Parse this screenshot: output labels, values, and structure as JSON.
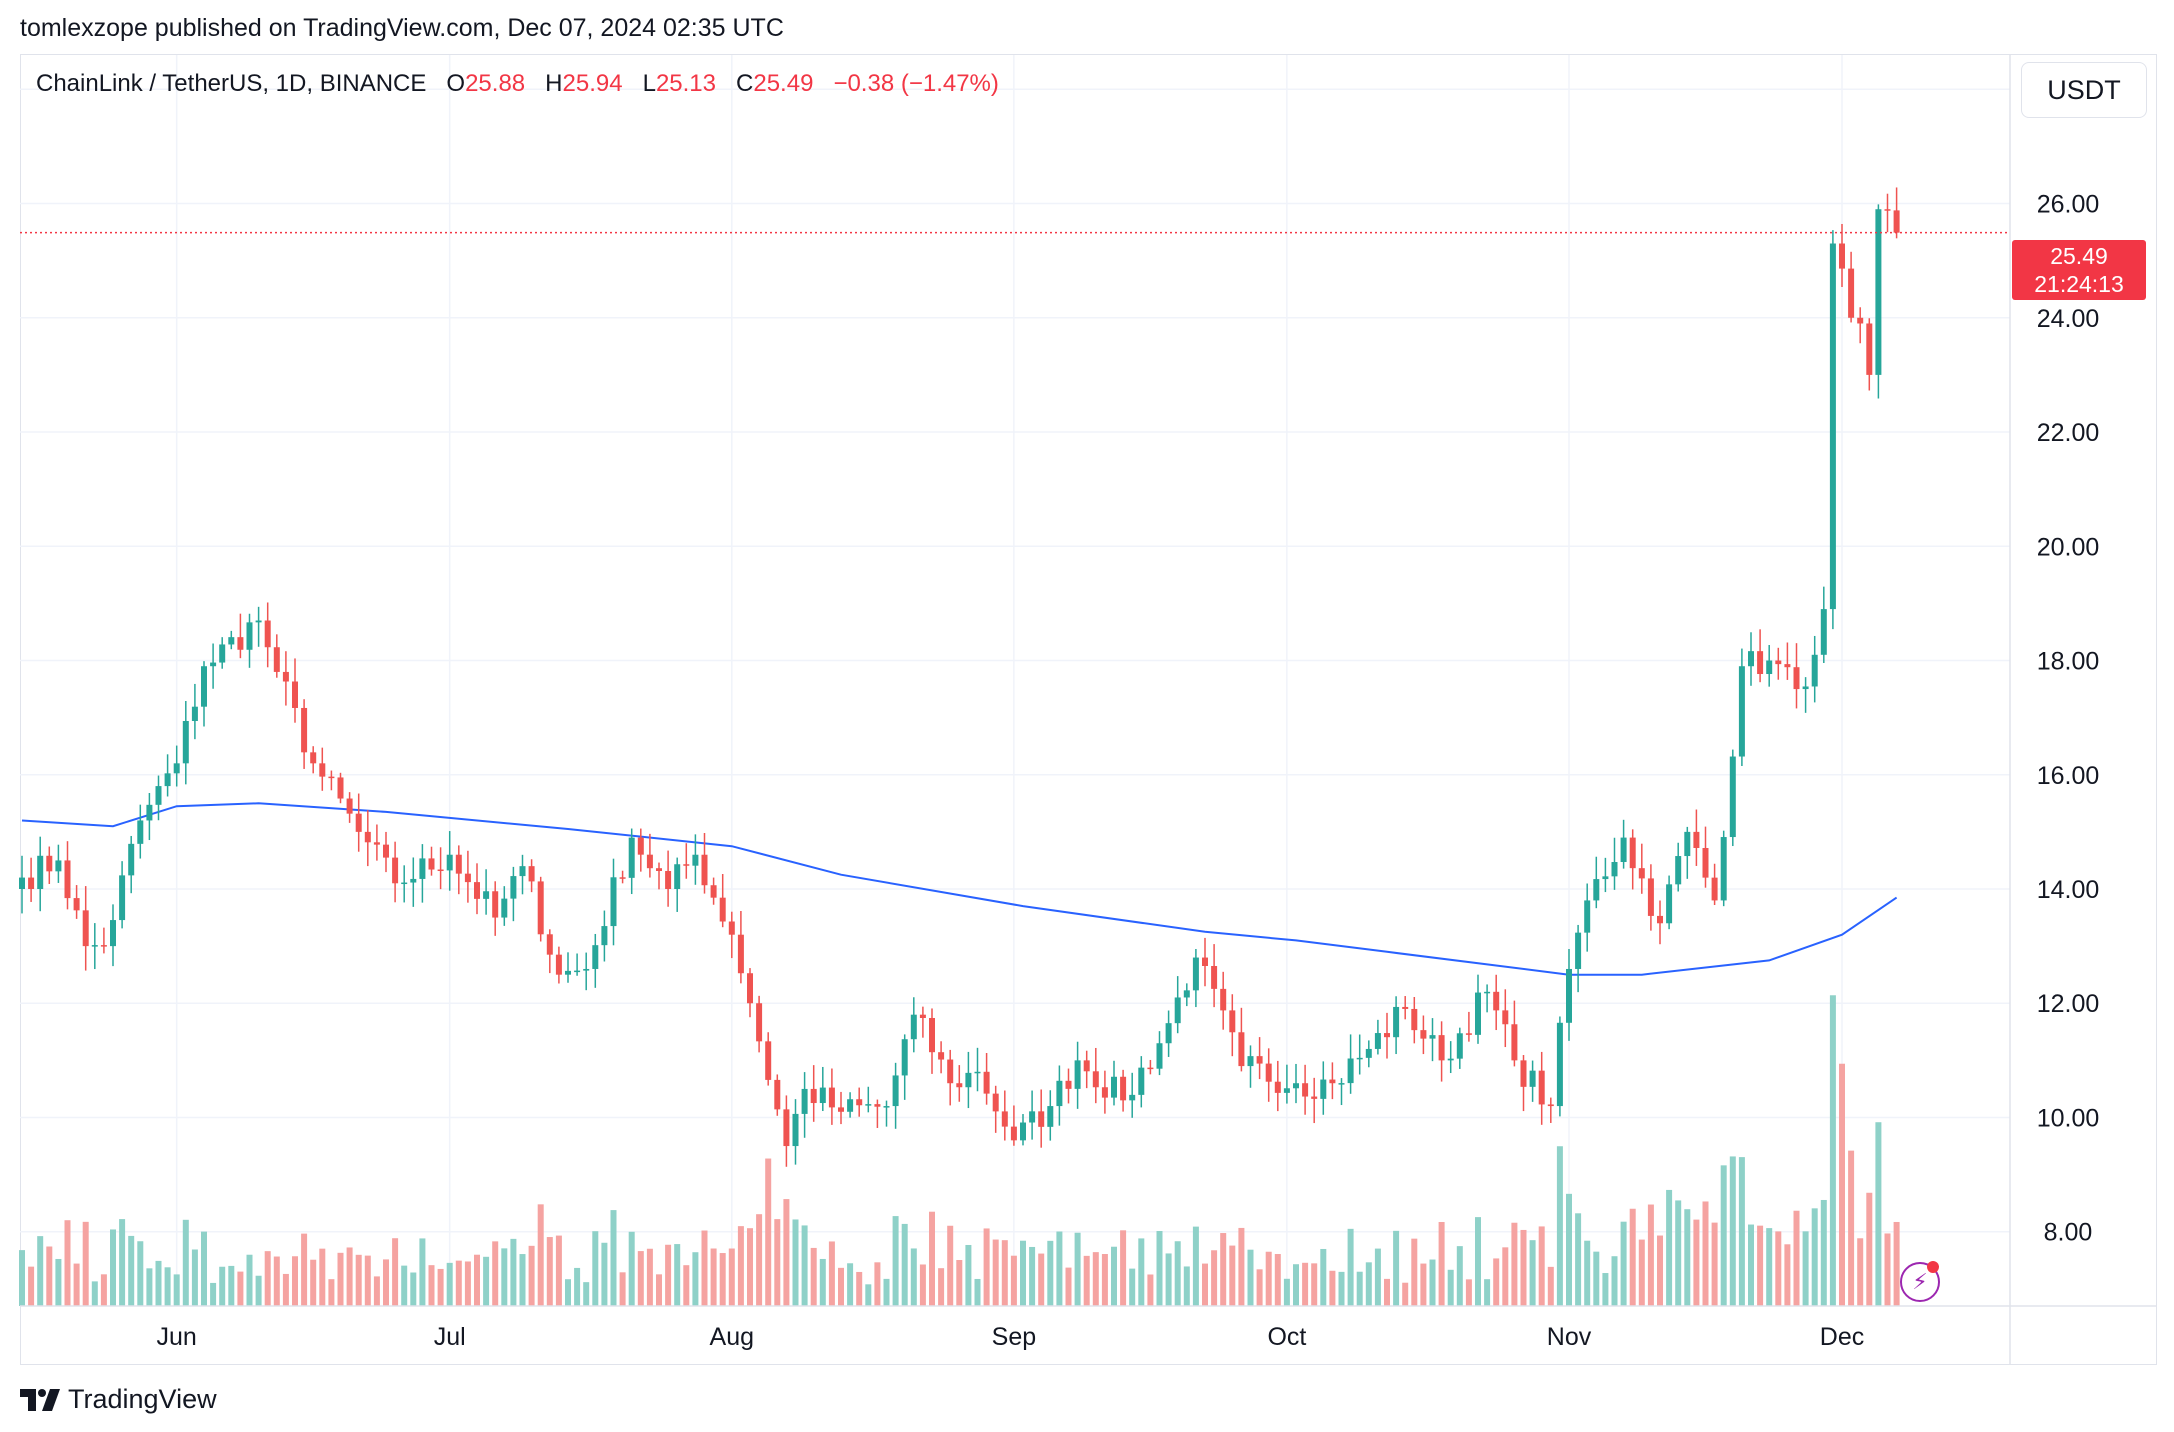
{
  "header": {
    "published_line": "tomlexzope published on TradingView.com, Dec 07, 2024 02:35 UTC"
  },
  "legend": {
    "symbol": "ChainLink / TetherUS, 1D, BINANCE",
    "open_label": "O",
    "open": "25.88",
    "high_label": "H",
    "high": "25.94",
    "low_label": "L",
    "low": "25.13",
    "close_label": "C",
    "close": "25.49",
    "change": "−0.38 (−1.47%)"
  },
  "currency_button": "USDT",
  "last_price": {
    "value": "25.49",
    "countdown": "21:24:13"
  },
  "footer": {
    "brand": "TradingView",
    "logo_icon": "tradingview-logo-icon"
  },
  "chart_data": {
    "type": "candlestick",
    "ylim": [
      6.7,
      28.6
    ],
    "y_ticks": [
      "8.00",
      "10.00",
      "12.00",
      "14.00",
      "16.00",
      "18.00",
      "20.00",
      "22.00",
      "24.00",
      "26.00",
      "28.00"
    ],
    "x_ticks": [
      {
        "label": "Jun",
        "day": 17
      },
      {
        "label": "Jul",
        "day": 47
      },
      {
        "label": "Aug",
        "day": 78
      },
      {
        "label": "Sep",
        "day": 109
      },
      {
        "label": "Oct",
        "day": 139
      },
      {
        "label": "Nov",
        "day": 170
      },
      {
        "label": "Dec",
        "day": 200
      }
    ],
    "grid": true,
    "colors": {
      "up": "#26a69a",
      "down": "#ef5350",
      "up_volume": "#8ed1c8",
      "down_volume": "#f5a3a1",
      "ma": "#2962ff",
      "last_price_line": "#f23645"
    },
    "first_date": "2024-05-15",
    "moving_average": {
      "days": [
        0,
        10,
        17,
        26,
        40,
        60,
        78,
        90,
        110,
        130,
        140,
        150,
        170,
        178,
        192,
        200,
        206
      ],
      "values": [
        15.2,
        15.1,
        15.45,
        15.5,
        15.35,
        15.05,
        14.75,
        14.25,
        13.7,
        13.25,
        13.1,
        12.9,
        12.5,
        12.5,
        12.75,
        13.2,
        13.85
      ]
    },
    "anchors": {
      "days": [
        0,
        4,
        7,
        9,
        13,
        17,
        20,
        26,
        28,
        32,
        37,
        41,
        47,
        52,
        55,
        59,
        62,
        67,
        71,
        74,
        78,
        80,
        84,
        86,
        90,
        95,
        98,
        102,
        105,
        109,
        113,
        116,
        121,
        125,
        129,
        134,
        140,
        144,
        148,
        152,
        156,
        161,
        164,
        168,
        170,
        172,
        176,
        180,
        183,
        186,
        189,
        192,
        195,
        197,
        198,
        199,
        201,
        202,
        203,
        204,
        205,
        206
      ],
      "closes": [
        14.2,
        14.5,
        13.0,
        13.0,
        15.2,
        16.2,
        17.9,
        18.7,
        17.8,
        16.2,
        15.0,
        14.1,
        14.6,
        13.5,
        14.4,
        12.5,
        12.6,
        14.9,
        14.0,
        14.6,
        13.2,
        12.0,
        9.5,
        10.5,
        10.1,
        10.2,
        11.8,
        10.6,
        10.8,
        9.6,
        10.2,
        11.0,
        10.3,
        11.3,
        12.8,
        10.9,
        10.6,
        10.6,
        11.2,
        11.9,
        11.0,
        12.2,
        11.0,
        10.2,
        12.6,
        13.8,
        14.9,
        13.4,
        15.0,
        13.8,
        17.9,
        18.0,
        17.5,
        18.1,
        18.9,
        25.3,
        24.0,
        23.9,
        23.0,
        25.9,
        25.88,
        25.49
      ]
    },
    "volume_ylim": [
      0,
      12
    ],
    "volume_spikes": [
      {
        "day": 82,
        "value": 5.6,
        "up": false
      },
      {
        "day": 199,
        "value": 11.8,
        "up": true
      },
      {
        "day": 200,
        "value": 9.2,
        "up": false
      },
      {
        "day": 201,
        "value": 5.9,
        "up": false
      }
    ]
  }
}
